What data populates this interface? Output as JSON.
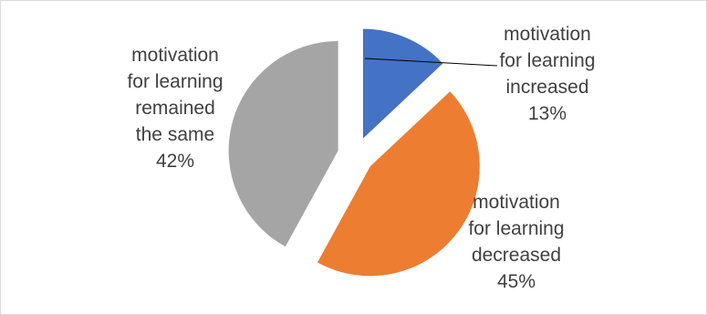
{
  "chart_data": {
    "type": "pie",
    "title": "",
    "exploded": true,
    "start_angle_deg": 0,
    "direction": "clockwise",
    "slices": [
      {
        "category": [
          "motivation",
          "for learning",
          "increased"
        ],
        "value": 13,
        "value_label": "13%",
        "color": "#4472c4"
      },
      {
        "category": [
          "motivation",
          "for learning",
          "decreased"
        ],
        "value": 45,
        "value_label": "45%",
        "color": "#ed7d31"
      },
      {
        "category": [
          "motivation",
          "for learning",
          "remained",
          "the same"
        ],
        "value": 42,
        "value_label": "42%",
        "color": "#a5a5a5"
      }
    ]
  }
}
